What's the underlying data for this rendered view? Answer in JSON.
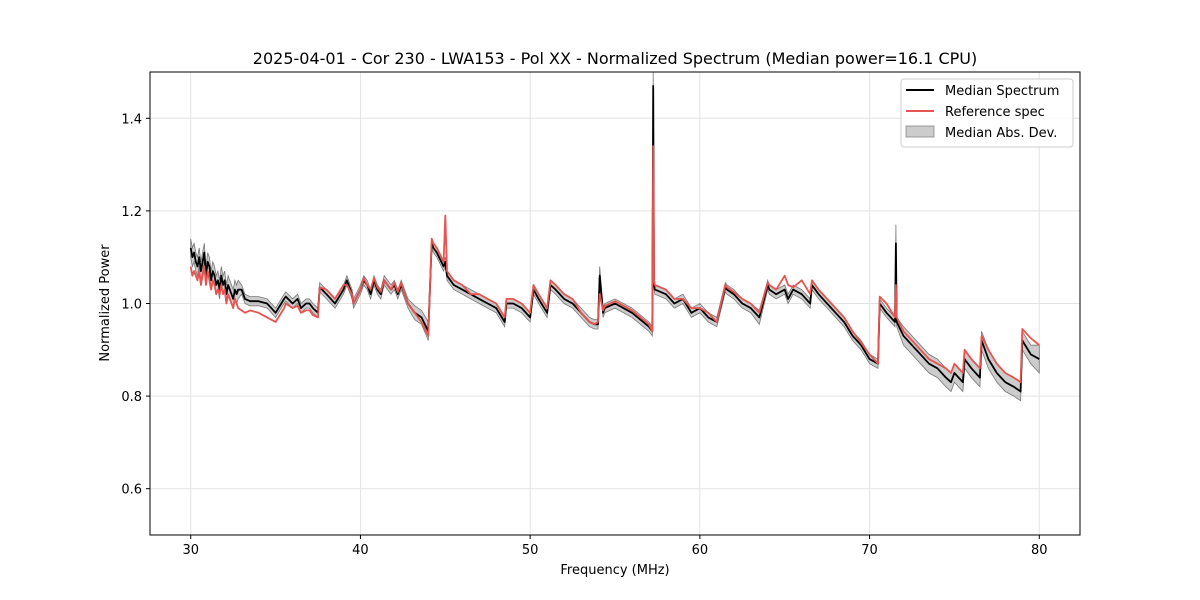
{
  "chart_data": {
    "type": "line",
    "title": "2025-04-01 - Cor 230 - LWA153 - Pol XX - Normalized Spectrum (Median power=16.1 CPU)",
    "xlabel": "Frequency (MHz)",
    "ylabel": "Normalized Power",
    "xlim": [
      27.6,
      82.4
    ],
    "ylim": [
      0.5,
      1.5
    ],
    "xticks": [
      30,
      40,
      50,
      60,
      70,
      80
    ],
    "yticks": [
      0.6,
      0.8,
      1.0,
      1.2,
      1.4
    ],
    "grid": true,
    "legend_position": "top-right",
    "colors": {
      "median": "#000000",
      "reference": "#e8534f",
      "mad": "#999999"
    },
    "series": [
      {
        "name": "Median Spectrum",
        "x": [
          30.0,
          30.1,
          30.2,
          30.3,
          30.4,
          30.5,
          30.6,
          30.7,
          30.8,
          30.9,
          31.0,
          31.1,
          31.2,
          31.3,
          31.4,
          31.5,
          31.6,
          31.7,
          31.8,
          31.9,
          32.0,
          32.1,
          32.2,
          32.3,
          32.4,
          32.5,
          32.6,
          32.7,
          32.8,
          33.0,
          33.2,
          33.5,
          34.0,
          34.5,
          35.0,
          35.5,
          35.6,
          36.0,
          36.3,
          36.5,
          36.8,
          37.0,
          37.2,
          37.5,
          37.6,
          38.0,
          38.5,
          39.0,
          39.2,
          39.5,
          39.6,
          40.0,
          40.2,
          40.4,
          40.6,
          40.8,
          41.0,
          41.2,
          41.4,
          41.6,
          41.8,
          42.0,
          42.2,
          42.4,
          42.6,
          42.8,
          43.2,
          43.6,
          44.0,
          44.2,
          44.3,
          44.5,
          44.9,
          45.0,
          45.1,
          45.5,
          46.0,
          46.5,
          47.0,
          47.5,
          48.0,
          48.5,
          48.6,
          49.0,
          49.5,
          50.0,
          50.2,
          50.5,
          51.0,
          51.2,
          51.5,
          52.0,
          52.5,
          53.0,
          53.5,
          53.8,
          54.0,
          54.1,
          54.3,
          54.4,
          55.0,
          56.0,
          57.0,
          57.2,
          57.25,
          57.3,
          57.35,
          58.0,
          58.5,
          59.0,
          59.5,
          60.0,
          60.5,
          61.0,
          61.5,
          61.6,
          62.0,
          62.5,
          63.0,
          63.5,
          64.0,
          64.1,
          64.5,
          65.0,
          65.2,
          65.5,
          66.0,
          66.5,
          66.6,
          67.0,
          67.5,
          68.0,
          68.5,
          69.0,
          69.5,
          70.0,
          70.5,
          70.6,
          71.0,
          71.5,
          71.55,
          71.6,
          72.0,
          72.5,
          73.0,
          73.5,
          74.0,
          74.5,
          74.8,
          75.0,
          75.5,
          75.6,
          76.0,
          76.5,
          76.6,
          77.0,
          77.5,
          78.0,
          78.5,
          78.9,
          79.0,
          79.5,
          80.0
        ],
        "values": [
          1.12,
          1.1,
          1.11,
          1.09,
          1.08,
          1.1,
          1.07,
          1.09,
          1.11,
          1.06,
          1.09,
          1.08,
          1.05,
          1.07,
          1.06,
          1.04,
          1.05,
          1.03,
          1.06,
          1.04,
          1.05,
          1.02,
          1.04,
          1.03,
          1.02,
          1.01,
          1.03,
          1.02,
          1.03,
          1.03,
          1.01,
          1.005,
          1.005,
          1.0,
          0.98,
          1.01,
          1.015,
          1.0,
          1.01,
          0.99,
          1.0,
          1.0,
          0.99,
          0.98,
          1.035,
          1.02,
          1.0,
          1.03,
          1.05,
          1.02,
          1.0,
          1.03,
          1.05,
          1.04,
          1.02,
          1.05,
          1.03,
          1.02,
          1.05,
          1.04,
          1.03,
          1.04,
          1.02,
          1.04,
          1.02,
          1.0,
          0.98,
          0.97,
          0.94,
          1.13,
          1.12,
          1.11,
          1.08,
          1.09,
          1.06,
          1.04,
          1.03,
          1.02,
          1.01,
          1.0,
          0.99,
          0.96,
          1.0,
          1.0,
          0.99,
          0.97,
          1.03,
          1.01,
          0.98,
          1.04,
          1.03,
          1.01,
          1.0,
          0.98,
          0.96,
          0.955,
          0.955,
          1.06,
          0.98,
          0.99,
          1.0,
          0.98,
          0.95,
          0.94,
          1.47,
          1.04,
          1.03,
          1.02,
          1.0,
          1.01,
          0.98,
          0.99,
          0.97,
          0.96,
          1.035,
          1.03,
          1.02,
          1.0,
          0.99,
          0.97,
          1.04,
          1.03,
          1.02,
          1.03,
          1.01,
          1.03,
          1.02,
          1.0,
          1.04,
          1.02,
          1.0,
          0.98,
          0.96,
          0.93,
          0.91,
          0.88,
          0.87,
          1.0,
          0.98,
          0.96,
          1.13,
          0.96,
          0.93,
          0.91,
          0.89,
          0.87,
          0.86,
          0.84,
          0.83,
          0.85,
          0.83,
          0.88,
          0.86,
          0.84,
          0.92,
          0.88,
          0.85,
          0.83,
          0.82,
          0.81,
          0.92,
          0.89,
          0.88
        ]
      },
      {
        "name": "Reference spec",
        "x": [
          30.0,
          30.1,
          30.2,
          30.3,
          30.4,
          30.5,
          30.6,
          30.7,
          30.8,
          30.9,
          31.0,
          31.1,
          31.2,
          31.3,
          31.4,
          31.5,
          31.6,
          31.7,
          31.8,
          31.9,
          32.0,
          32.1,
          32.2,
          32.3,
          32.4,
          32.5,
          32.6,
          32.7,
          32.8,
          33.0,
          33.2,
          33.5,
          34.0,
          34.5,
          35.0,
          35.5,
          35.6,
          36.0,
          36.3,
          36.5,
          36.8,
          37.0,
          37.2,
          37.5,
          37.6,
          38.0,
          38.5,
          39.0,
          39.2,
          39.5,
          39.6,
          40.0,
          40.2,
          40.4,
          40.6,
          40.8,
          41.0,
          41.2,
          41.4,
          41.6,
          41.8,
          42.0,
          42.2,
          42.4,
          42.6,
          42.8,
          43.2,
          43.6,
          44.0,
          44.2,
          44.3,
          44.5,
          44.9,
          45.0,
          45.1,
          45.5,
          46.0,
          46.5,
          47.0,
          47.5,
          48.0,
          48.5,
          48.6,
          49.0,
          49.5,
          50.0,
          50.2,
          50.5,
          51.0,
          51.2,
          51.5,
          52.0,
          52.5,
          53.0,
          53.5,
          53.8,
          54.0,
          54.1,
          54.3,
          54.4,
          55.0,
          56.0,
          57.0,
          57.2,
          57.25,
          57.3,
          57.35,
          58.0,
          58.5,
          59.0,
          59.5,
          60.0,
          60.5,
          61.0,
          61.5,
          61.6,
          62.0,
          62.5,
          63.0,
          63.5,
          64.0,
          64.1,
          64.5,
          65.0,
          65.2,
          65.5,
          66.0,
          66.5,
          66.6,
          67.0,
          67.5,
          68.0,
          68.5,
          69.0,
          69.5,
          70.0,
          70.5,
          70.6,
          71.0,
          71.5,
          71.55,
          71.6,
          72.0,
          72.5,
          73.0,
          73.5,
          74.0,
          74.5,
          74.8,
          75.0,
          75.5,
          75.6,
          76.0,
          76.5,
          76.6,
          77.0,
          77.5,
          78.0,
          78.5,
          78.9,
          79.0,
          79.5,
          80.0
        ],
        "values": [
          1.08,
          1.06,
          1.07,
          1.06,
          1.05,
          1.07,
          1.04,
          1.06,
          1.08,
          1.04,
          1.07,
          1.05,
          1.03,
          1.05,
          1.04,
          1.02,
          1.03,
          1.02,
          1.04,
          1.02,
          1.03,
          1.0,
          1.02,
          1.01,
          1.0,
          0.99,
          1.01,
          1.0,
          0.99,
          0.985,
          0.98,
          0.985,
          0.98,
          0.97,
          0.96,
          0.99,
          1.0,
          0.99,
          0.995,
          0.98,
          0.985,
          0.985,
          0.975,
          0.97,
          1.035,
          1.03,
          1.01,
          1.04,
          1.04,
          1.02,
          1.0,
          1.03,
          1.055,
          1.04,
          1.03,
          1.055,
          1.035,
          1.025,
          1.05,
          1.04,
          1.03,
          1.045,
          1.025,
          1.045,
          1.02,
          1.0,
          0.98,
          0.96,
          0.93,
          1.14,
          1.13,
          1.12,
          1.09,
          1.19,
          1.07,
          1.05,
          1.04,
          1.02,
          1.02,
          1.01,
          1.0,
          0.97,
          1.01,
          1.01,
          1.0,
          0.98,
          1.04,
          1.02,
          0.99,
          1.05,
          1.04,
          1.02,
          1.01,
          0.98,
          0.96,
          0.955,
          0.96,
          1.02,
          0.985,
          0.995,
          1.005,
          0.985,
          0.955,
          0.94,
          1.34,
          1.05,
          1.04,
          1.03,
          1.01,
          1.01,
          0.99,
          0.99,
          0.98,
          0.96,
          1.04,
          1.035,
          1.025,
          1.01,
          1.0,
          0.98,
          1.045,
          1.04,
          1.03,
          1.06,
          1.04,
          1.035,
          1.05,
          1.02,
          1.05,
          1.03,
          1.01,
          0.99,
          0.97,
          0.94,
          0.915,
          0.89,
          0.87,
          1.015,
          1.0,
          0.97,
          1.04,
          0.97,
          0.94,
          0.92,
          0.9,
          0.88,
          0.87,
          0.86,
          0.85,
          0.87,
          0.85,
          0.9,
          0.88,
          0.86,
          0.93,
          0.9,
          0.87,
          0.85,
          0.84,
          0.83,
          0.945,
          0.925,
          0.91
        ]
      }
    ],
    "mad_band": {
      "name": "Median Abs. Dev.",
      "x": [
        30.0,
        30.1,
        30.2,
        30.3,
        30.4,
        30.5,
        30.6,
        30.7,
        30.8,
        30.9,
        31.0,
        31.1,
        31.2,
        31.3,
        31.4,
        31.5,
        31.6,
        31.7,
        31.8,
        31.9,
        32.0,
        32.1,
        32.2,
        32.3,
        32.4,
        32.5,
        32.6,
        32.7,
        32.8,
        33.0,
        33.2,
        33.5,
        34.0,
        34.5,
        35.0,
        35.5,
        35.6,
        36.0,
        36.3,
        36.5,
        36.8,
        37.0,
        37.2,
        37.5,
        37.6,
        38.0,
        38.5,
        39.0,
        39.2,
        39.5,
        39.6,
        40.0,
        40.2,
        40.4,
        40.6,
        40.8,
        41.0,
        41.2,
        41.4,
        41.6,
        41.8,
        42.0,
        42.2,
        42.4,
        42.6,
        42.8,
        43.2,
        43.6,
        44.0,
        44.2,
        44.3,
        44.5,
        44.9,
        45.0,
        45.1,
        45.5,
        46.0,
        46.5,
        47.0,
        47.5,
        48.0,
        48.5,
        48.6,
        49.0,
        49.5,
        50.0,
        50.2,
        50.5,
        51.0,
        51.2,
        51.5,
        52.0,
        52.5,
        53.0,
        53.5,
        53.8,
        54.0,
        54.1,
        54.3,
        54.4,
        55.0,
        56.0,
        57.0,
        57.2,
        57.25,
        57.3,
        57.35,
        58.0,
        58.5,
        59.0,
        59.5,
        60.0,
        60.5,
        61.0,
        61.5,
        61.6,
        62.0,
        62.5,
        63.0,
        63.5,
        64.0,
        64.1,
        64.5,
        65.0,
        65.2,
        65.5,
        66.0,
        66.5,
        66.6,
        67.0,
        67.5,
        68.0,
        68.5,
        69.0,
        69.5,
        70.0,
        70.5,
        70.6,
        71.0,
        71.5,
        71.55,
        71.6,
        72.0,
        72.5,
        73.0,
        73.5,
        74.0,
        74.5,
        74.8,
        75.0,
        75.5,
        75.6,
        76.0,
        76.5,
        76.6,
        77.0,
        77.5,
        78.0,
        78.5,
        78.9,
        79.0,
        79.5,
        80.0
      ],
      "lower": [
        1.1,
        1.08,
        1.09,
        1.07,
        1.06,
        1.08,
        1.05,
        1.07,
        1.09,
        1.04,
        1.07,
        1.06,
        1.03,
        1.05,
        1.04,
        1.02,
        1.03,
        1.01,
        1.04,
        1.02,
        1.03,
        1.0,
        1.02,
        1.01,
        1.0,
        0.99,
        1.01,
        1.0,
        1.01,
        1.02,
        1.0,
        0.995,
        0.995,
        0.99,
        0.97,
        1.0,
        1.005,
        0.99,
        1.0,
        0.98,
        0.99,
        0.99,
        0.98,
        0.97,
        1.025,
        1.01,
        0.99,
        1.02,
        1.04,
        1.01,
        0.99,
        1.02,
        1.04,
        1.03,
        1.01,
        1.04,
        1.02,
        1.01,
        1.04,
        1.03,
        1.02,
        1.03,
        1.01,
        1.03,
        1.01,
        0.99,
        0.965,
        0.955,
        0.92,
        1.12,
        1.11,
        1.1,
        1.07,
        1.08,
        1.05,
        1.03,
        1.02,
        1.01,
        1.0,
        0.99,
        0.98,
        0.95,
        0.99,
        0.99,
        0.98,
        0.96,
        1.02,
        1.0,
        0.97,
        1.03,
        1.02,
        1.0,
        0.99,
        0.97,
        0.95,
        0.945,
        0.945,
        1.04,
        0.97,
        0.98,
        0.99,
        0.97,
        0.94,
        0.93,
        1.44,
        1.03,
        1.02,
        1.01,
        0.99,
        1.0,
        0.97,
        0.98,
        0.96,
        0.95,
        1.025,
        1.02,
        1.01,
        0.99,
        0.98,
        0.955,
        1.03,
        1.02,
        1.01,
        1.02,
        1.0,
        1.02,
        1.01,
        0.99,
        1.03,
        1.01,
        0.99,
        0.97,
        0.95,
        0.92,
        0.9,
        0.87,
        0.86,
        0.99,
        0.97,
        0.95,
        1.1,
        0.95,
        0.91,
        0.89,
        0.87,
        0.85,
        0.84,
        0.82,
        0.81,
        0.83,
        0.81,
        0.86,
        0.84,
        0.82,
        0.9,
        0.86,
        0.83,
        0.81,
        0.8,
        0.79,
        0.9,
        0.87,
        0.85
      ],
      "upper": [
        1.14,
        1.12,
        1.13,
        1.11,
        1.1,
        1.12,
        1.09,
        1.11,
        1.13,
        1.08,
        1.11,
        1.1,
        1.07,
        1.09,
        1.08,
        1.06,
        1.07,
        1.05,
        1.08,
        1.06,
        1.07,
        1.04,
        1.06,
        1.05,
        1.04,
        1.03,
        1.05,
        1.04,
        1.05,
        1.04,
        1.02,
        1.015,
        1.015,
        1.01,
        0.99,
        1.02,
        1.025,
        1.01,
        1.02,
        1.0,
        1.01,
        1.01,
        1.0,
        0.99,
        1.045,
        1.03,
        1.01,
        1.04,
        1.06,
        1.03,
        1.01,
        1.04,
        1.06,
        1.05,
        1.03,
        1.06,
        1.04,
        1.03,
        1.06,
        1.05,
        1.04,
        1.05,
        1.03,
        1.05,
        1.03,
        1.01,
        0.995,
        0.985,
        0.96,
        1.14,
        1.13,
        1.12,
        1.09,
        1.1,
        1.07,
        1.05,
        1.04,
        1.03,
        1.02,
        1.01,
        1.0,
        0.97,
        1.01,
        1.01,
        1.0,
        0.98,
        1.04,
        1.02,
        0.99,
        1.05,
        1.04,
        1.02,
        1.01,
        0.99,
        0.97,
        0.965,
        0.965,
        1.08,
        0.99,
        1.0,
        1.01,
        0.99,
        0.96,
        0.95,
        1.5,
        1.05,
        1.04,
        1.03,
        1.01,
        1.02,
        0.99,
        1.0,
        0.98,
        0.97,
        1.045,
        1.04,
        1.03,
        1.01,
        1.0,
        0.985,
        1.05,
        1.04,
        1.03,
        1.04,
        1.02,
        1.04,
        1.03,
        1.01,
        1.05,
        1.03,
        1.01,
        0.99,
        0.97,
        0.94,
        0.92,
        0.89,
        0.88,
        1.01,
        0.99,
        0.97,
        1.17,
        0.97,
        0.95,
        0.93,
        0.91,
        0.89,
        0.88,
        0.86,
        0.85,
        0.87,
        0.85,
        0.9,
        0.88,
        0.86,
        0.94,
        0.9,
        0.87,
        0.85,
        0.84,
        0.83,
        0.94,
        0.91,
        0.91
      ]
    }
  }
}
